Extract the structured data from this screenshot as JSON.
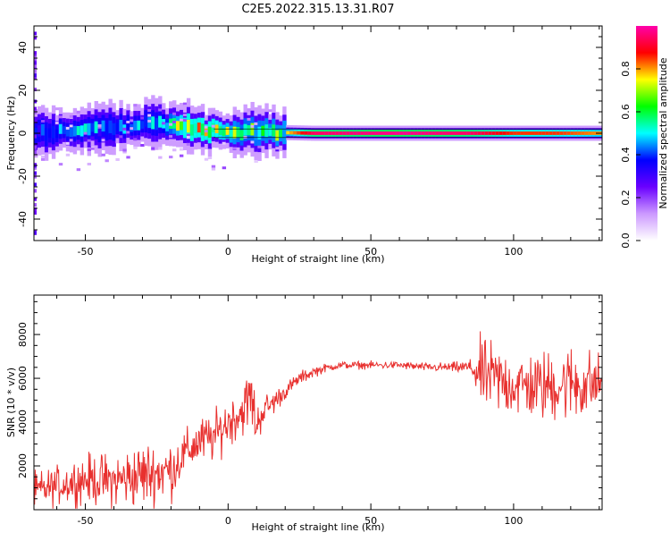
{
  "title": "C2E5.2022.315.13.31.R07",
  "chart_data": [
    {
      "type": "heatmap",
      "xlabel": "Height of straight line (km)",
      "ylabel": "Frequency (Hz)",
      "xlim": [
        -68,
        131
      ],
      "ylim": [
        -50,
        50
      ],
      "x_ticks": [
        -50,
        0,
        50,
        100
      ],
      "y_ticks": [
        -40,
        -20,
        0,
        20,
        40
      ],
      "colorbar": {
        "label": "Normalized spectral amplitude",
        "range": [
          0,
          1
        ],
        "ticks": [
          0.0,
          0.2,
          0.4,
          0.6,
          0.8
        ],
        "tick_labels": [
          "0.0",
          "0.2",
          "0.4",
          "0.6",
          "0.8"
        ],
        "colormap": [
          "#ffffff",
          "#cc99ff",
          "#6a00ff",
          "#0000ff",
          "#00ffff",
          "#00ff00",
          "#ffff00",
          "#ff0000",
          "#ff00aa"
        ]
      },
      "ridge": [
        {
          "x": -68,
          "y": 0.5,
          "amp": 0.45
        },
        {
          "x": -55,
          "y": 1.0,
          "amp": 0.55
        },
        {
          "x": -40,
          "y": 2.5,
          "amp": 0.5
        },
        {
          "x": -25,
          "y": 5.0,
          "amp": 0.55
        },
        {
          "x": -15,
          "y": 3.0,
          "amp": 0.85
        },
        {
          "x": -5,
          "y": 1.5,
          "amp": 0.85
        },
        {
          "x": 5,
          "y": 0.5,
          "amp": 0.7
        },
        {
          "x": 20,
          "y": 0.3,
          "amp": 0.75
        },
        {
          "x": 30,
          "y": 0.0,
          "amp": 0.95
        },
        {
          "x": 60,
          "y": 0.0,
          "amp": 0.98
        },
        {
          "x": 85,
          "y": 0.0,
          "amp": 0.95
        },
        {
          "x": 100,
          "y": 0.0,
          "amp": 0.85
        },
        {
          "x": 115,
          "y": 0.0,
          "amp": 0.85
        },
        {
          "x": 131,
          "y": 0.0,
          "amp": 0.8
        }
      ]
    },
    {
      "type": "line",
      "xlabel": "Height of straight line (km)",
      "ylabel": "SNR (10 * v/v)",
      "xlim": [
        -68,
        131
      ],
      "ylim": [
        0,
        9800
      ],
      "x_ticks": [
        -50,
        0,
        50,
        100
      ],
      "y_ticks": [
        2000,
        4000,
        6000,
        8000
      ],
      "color": "#e8302e",
      "series": [
        {
          "x": [
            -68,
            -60,
            -50,
            -40,
            -30,
            -20,
            -15,
            -10,
            -5,
            0,
            5,
            8,
            10,
            12,
            15,
            20,
            25,
            30,
            35,
            40,
            50,
            60,
            70,
            80,
            85,
            88,
            95,
            100,
            110,
            120,
            125,
            131
          ],
          "y": [
            800,
            1100,
            1400,
            1300,
            1600,
            1800,
            2600,
            3100,
            3300,
            4000,
            4500,
            5200,
            3800,
            4500,
            4800,
            5400,
            6000,
            6300,
            6500,
            6600,
            6600,
            6600,
            6500,
            6500,
            6500,
            6200,
            5900,
            5700,
            5600,
            5800,
            5700,
            5800
          ],
          "noise": [
            700,
            700,
            900,
            1000,
            1200,
            1100,
            800,
            900,
            900,
            900,
            900,
            1200,
            900,
            600,
            500,
            300,
            250,
            200,
            150,
            140,
            140,
            150,
            150,
            200,
            300,
            1300,
            1300,
            1200,
            1300,
            1400,
            1400,
            1000
          ]
        }
      ]
    }
  ]
}
